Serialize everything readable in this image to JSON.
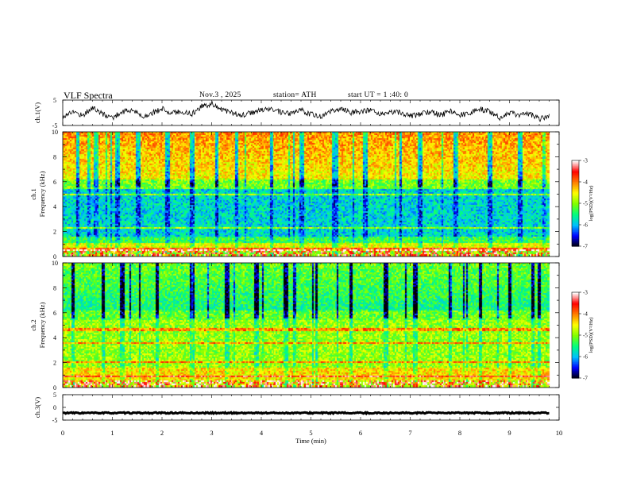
{
  "header": {
    "title": "VLF  Spectra",
    "date": "Nov.3  , 2025",
    "station": "station= ATH",
    "start_ut": "start  UT  =   1 :40: 0"
  },
  "chart_data": [
    {
      "type": "line",
      "name": "ch1-waveform",
      "ylabel": "ch.1(V)",
      "ylim": [
        -5,
        5
      ],
      "yticks": [
        "5",
        "-5"
      ],
      "x": [
        0.0,
        0.2,
        0.4,
        0.6,
        0.8,
        1.0,
        1.2,
        1.4,
        1.6,
        1.8,
        2.0,
        2.2,
        2.4,
        2.6,
        2.8,
        3.0,
        3.2,
        3.4,
        3.6,
        3.8,
        4.0,
        4.2,
        4.4,
        4.6,
        4.8,
        5.0,
        5.2,
        5.4,
        5.6,
        5.8,
        6.0,
        6.2,
        6.4,
        6.6,
        6.8,
        7.0,
        7.2,
        7.4,
        7.6,
        7.8,
        8.0,
        8.2,
        8.4,
        8.6,
        8.8,
        9.0,
        9.2,
        9.4,
        9.6,
        9.8
      ],
      "y": [
        -1.5,
        0.5,
        -1.0,
        2.0,
        -0.5,
        -2.0,
        0.5,
        1.0,
        -1.5,
        0.0,
        1.5,
        0.0,
        0.5,
        -0.5,
        2.5,
        3.5,
        1.5,
        0.0,
        -1.0,
        0.0,
        1.0,
        1.5,
        0.0,
        -0.5,
        1.0,
        -0.5,
        -1.5,
        0.5,
        1.5,
        0.0,
        0.5,
        1.0,
        -1.0,
        0.5,
        0.0,
        -1.5,
        -0.5,
        0.5,
        -1.0,
        0.5,
        -1.0,
        0.0,
        1.5,
        0.5,
        -2.0,
        0.0,
        -1.0,
        -0.5,
        -2.5,
        -1.0
      ]
    },
    {
      "type": "heatmap",
      "name": "ch1-spectrogram",
      "ylabel": "ch.1  Frequency (kHz)",
      "ylim": [
        0,
        10
      ],
      "yticks": [
        "0",
        "2",
        "4",
        "6",
        "8",
        "10"
      ],
      "xlim": [
        0,
        10
      ],
      "colorbar": {
        "label": "log(PSD)(V²/Hz)",
        "range": [
          -7,
          -3
        ],
        "ticks": [
          "-3",
          "-4",
          "-5",
          "-6",
          "-7"
        ]
      },
      "features": {
        "low_band_kHz": [
          1,
          5.5
        ],
        "low_band_level": -5.8,
        "high_band_kHz": [
          6,
          10
        ],
        "high_band_level": -4.3,
        "lines_kHz": [
          2.2,
          4.9,
          0.5
        ],
        "broadband_bursts_min": [
          0.3,
          1.1,
          1.5,
          2.1,
          2.6,
          3.1,
          3.5,
          4.2,
          4.8,
          5.5,
          6.1,
          6.8,
          7.2,
          7.9,
          8.6,
          9.2
        ]
      }
    },
    {
      "type": "heatmap",
      "name": "ch2-spectrogram",
      "ylabel": "ch.2  Frequency (kHz)",
      "ylim": [
        0,
        10
      ],
      "yticks": [
        "0",
        "2",
        "4",
        "6",
        "8",
        "10"
      ],
      "xlim": [
        0,
        10
      ],
      "colorbar": {
        "label": "log(PSD)(V²/Hz)",
        "range": [
          -7,
          -3
        ],
        "ticks": [
          "-3",
          "-4",
          "-5",
          "-6",
          "-7"
        ]
      },
      "features": {
        "low_band_kHz": [
          0,
          5.5
        ],
        "low_band_level": -4.9,
        "high_band_kHz": [
          6,
          10
        ],
        "high_band_level": -5.3,
        "lines_kHz": [
          0.8,
          2.0,
          3.5,
          4.6
        ],
        "broadband_bursts_min": [
          0.2,
          0.8,
          1.2,
          1.9,
          2.6,
          3.3,
          3.9,
          4.5,
          5.1,
          5.8,
          6.5,
          7.1,
          7.8,
          8.4,
          9.0,
          9.6
        ]
      }
    },
    {
      "type": "line",
      "name": "ch3-waveform",
      "ylabel": "ch.3(V)",
      "ylim": [
        -5,
        5
      ],
      "yticks": [
        "5",
        "0",
        "-5"
      ],
      "x": [
        0,
        9.8
      ],
      "y": [
        -2.2,
        -2.2
      ]
    }
  ],
  "axes": {
    "xlabel": "Time  (min)",
    "xlim": [
      0,
      10
    ],
    "xticks": [
      "0",
      "1",
      "2",
      "3",
      "4",
      "5",
      "6",
      "7",
      "8",
      "9",
      "10"
    ]
  },
  "colors": {
    "colormap": [
      "#000000",
      "#0000ff",
      "#00c0ff",
      "#00ff80",
      "#80ff00",
      "#ffff00",
      "#ff8000",
      "#ff0000",
      "#ffffff"
    ],
    "trace": "#000000"
  }
}
